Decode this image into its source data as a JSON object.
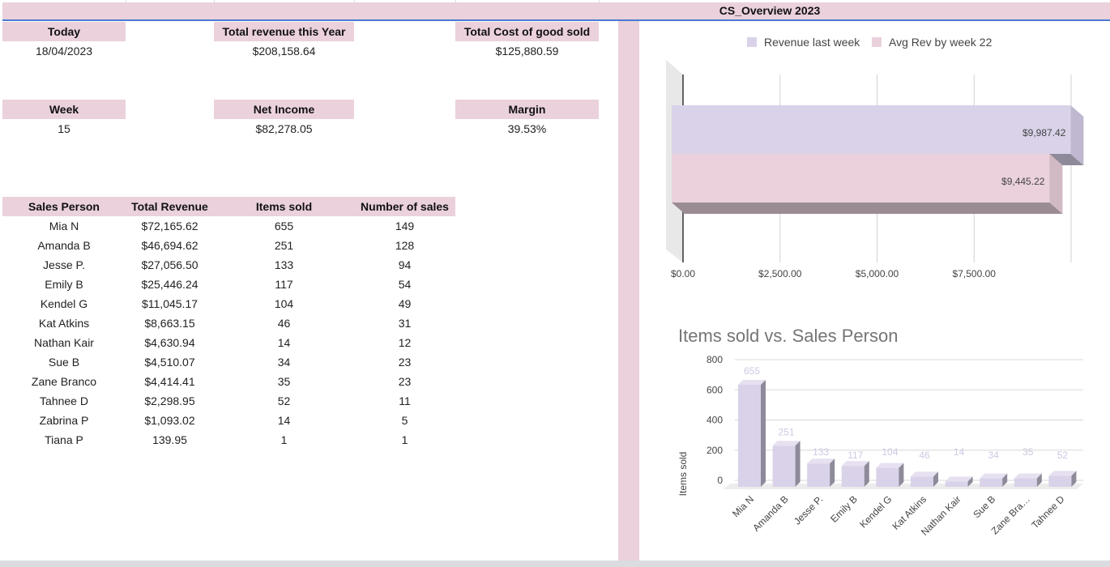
{
  "sheet": {
    "title": "CS_Overview 2023"
  },
  "kpis": {
    "today": {
      "label": "Today",
      "value": "18/04/2023"
    },
    "total_revenue": {
      "label": "Total revenue this Year",
      "value": "$208,158.64"
    },
    "total_cogs": {
      "label": "Total Cost of good sold",
      "value": "$125,880.59"
    },
    "week": {
      "label": "Week",
      "value": "15"
    },
    "net_income": {
      "label": "Net Income",
      "value": "$82,278.05"
    },
    "margin": {
      "label": "Margin",
      "value": "39.53%"
    }
  },
  "sales_table": {
    "headers": [
      "Sales Person",
      "Total Revenue",
      "Items sold",
      "Number of sales"
    ],
    "rows": [
      [
        "Mia N",
        "$72,165.62",
        "655",
        "149"
      ],
      [
        "Amanda B",
        "$46,694.62",
        "251",
        "128"
      ],
      [
        "Jesse P.",
        "$27,056.50",
        "133",
        "94"
      ],
      [
        "Emily B",
        "$25,446.24",
        "117",
        "54"
      ],
      [
        "Kendel G",
        "$11,045.17",
        "104",
        "49"
      ],
      [
        "Kat Atkins",
        "$8,663.15",
        "46",
        "31"
      ],
      [
        "Nathan Kair",
        "$4,630.94",
        "14",
        "12"
      ],
      [
        "Sue B",
        "$4,510.07",
        "34",
        "23"
      ],
      [
        "Zane Branco",
        "$4,414.41",
        "35",
        "23"
      ],
      [
        "Tahnee D",
        "$2,298.95",
        "52",
        "11"
      ],
      [
        "Zabrina P",
        "$1,093.02",
        "14",
        "5"
      ],
      [
        "Tiana P",
        "139.95",
        "1",
        "1"
      ]
    ]
  },
  "colors": {
    "header_pink": "#ead1dc",
    "lavender": "#d9d2e9",
    "pink_bar": "#ead1dc",
    "selection_blue": "#4a7bd0"
  },
  "chart_data": [
    {
      "type": "bar",
      "orientation": "horizontal",
      "series": [
        {
          "name": "Revenue last week",
          "values": [
            9987.42
          ],
          "label": "$9,987.42"
        },
        {
          "name": "Avg Rev by week 22",
          "values": [
            9445.22
          ],
          "label": "$9,445.22"
        }
      ],
      "xticks": [
        "$0.00",
        "$2,500.00",
        "$5,000.00",
        "$7,500.00"
      ],
      "xlim": [
        0,
        10000
      ],
      "legend": "top",
      "grid": true
    },
    {
      "type": "bar",
      "title": "Items sold vs. Sales Person",
      "ylabel": "Items sold",
      "categories": [
        "Mia N",
        "Amanda B",
        "Jesse P.",
        "Emily B",
        "Kendel G",
        "Kat Atkins",
        "Nathan Kair",
        "Sue B",
        "Zane Bra…",
        "Tahnee D"
      ],
      "values": [
        655,
        251,
        133,
        117,
        104,
        46,
        14,
        34,
        35,
        52
      ],
      "yticks": [
        "0",
        "200",
        "400",
        "600",
        "800"
      ],
      "ylim": [
        0,
        800
      ],
      "grid": true
    }
  ]
}
